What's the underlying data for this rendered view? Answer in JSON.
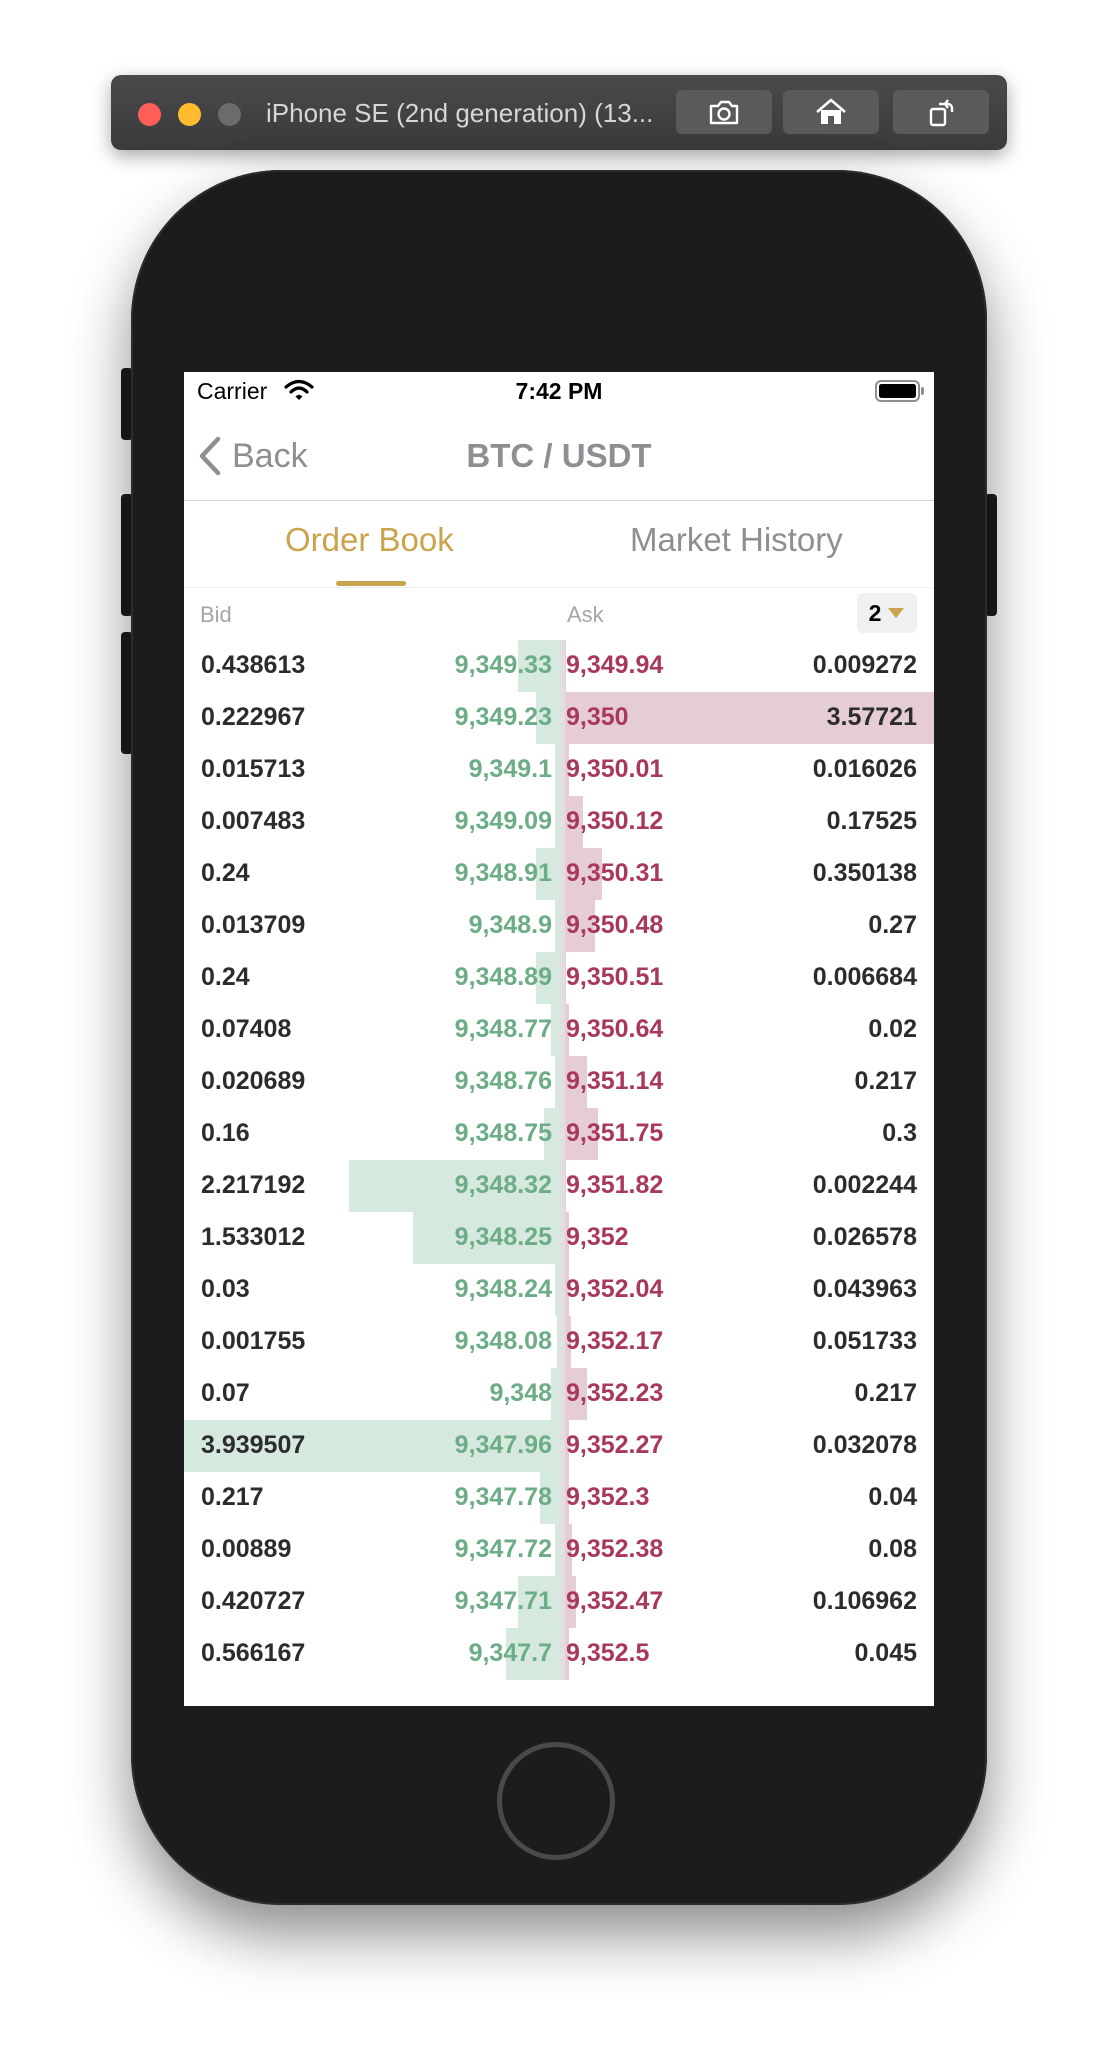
{
  "simulator": {
    "title": "iPhone SE (2nd generation) (13...",
    "screenshot_icon": "camera-icon",
    "home_icon": "home-icon",
    "rotate_icon": "rotate-icon"
  },
  "status_bar": {
    "carrier": "Carrier",
    "time": "7:42 PM"
  },
  "nav": {
    "back_label": "Back",
    "title": "BTC / USDT"
  },
  "tabs": [
    {
      "label": "Order Book",
      "active": true
    },
    {
      "label": "Market History",
      "active": false
    }
  ],
  "book_header": {
    "bid_label": "Bid",
    "ask_label": "Ask",
    "precision": "2"
  },
  "colors": {
    "accent": "#c9a44d",
    "bid_price": "#6cac86",
    "ask_price": "#a8385c",
    "bid_depth": "#d6e9df",
    "ask_depth": "#e6cdd5"
  },
  "order_book": [
    {
      "bid_amount": "0.438613",
      "bid_price": "9,349.33",
      "ask_price": "9,349.94",
      "ask_amount": "0.009272",
      "bid_depth": 0.11,
      "ask_depth": 0.003
    },
    {
      "bid_amount": "0.222967",
      "bid_price": "9,349.23",
      "ask_price": "9,350",
      "ask_amount": "3.57721",
      "bid_depth": 0.06,
      "ask_depth": 1.0
    },
    {
      "bid_amount": "0.015713",
      "bid_price": "9,349.1",
      "ask_price": "9,350.01",
      "ask_amount": "0.016026",
      "bid_depth": 0.01,
      "ask_depth": 0.01
    },
    {
      "bid_amount": "0.007483",
      "bid_price": "9,349.09",
      "ask_price": "9,350.12",
      "ask_amount": "0.17525",
      "bid_depth": 0.01,
      "ask_depth": 0.05
    },
    {
      "bid_amount": "0.24",
      "bid_price": "9,348.91",
      "ask_price": "9,350.31",
      "ask_amount": "0.350138",
      "bid_depth": 0.06,
      "ask_depth": 0.1
    },
    {
      "bid_amount": "0.013709",
      "bid_price": "9,348.9",
      "ask_price": "9,350.48",
      "ask_amount": "0.27",
      "bid_depth": 0.01,
      "ask_depth": 0.08
    },
    {
      "bid_amount": "0.24",
      "bid_price": "9,348.89",
      "ask_price": "9,350.51",
      "ask_amount": "0.006684",
      "bid_depth": 0.06,
      "ask_depth": 0.003
    },
    {
      "bid_amount": "0.07408",
      "bid_price": "9,348.77",
      "ask_price": "9,350.64",
      "ask_amount": "0.02",
      "bid_depth": 0.02,
      "ask_depth": 0.01
    },
    {
      "bid_amount": "0.020689",
      "bid_price": "9,348.76",
      "ask_price": "9,351.14",
      "ask_amount": "0.217",
      "bid_depth": 0.01,
      "ask_depth": 0.06
    },
    {
      "bid_amount": "0.16",
      "bid_price": "9,348.75",
      "ask_price": "9,351.75",
      "ask_amount": "0.3",
      "bid_depth": 0.04,
      "ask_depth": 0.09
    },
    {
      "bid_amount": "2.217192",
      "bid_price": "9,348.32",
      "ask_price": "9,351.82",
      "ask_amount": "0.002244",
      "bid_depth": 0.56,
      "ask_depth": 0.003
    },
    {
      "bid_amount": "1.533012",
      "bid_price": "9,348.25",
      "ask_price": "9,352",
      "ask_amount": "0.026578",
      "bid_depth": 0.39,
      "ask_depth": 0.01
    },
    {
      "bid_amount": "0.03",
      "bid_price": "9,348.24",
      "ask_price": "9,352.04",
      "ask_amount": "0.043963",
      "bid_depth": 0.01,
      "ask_depth": 0.01
    },
    {
      "bid_amount": "0.001755",
      "bid_price": "9,348.08",
      "ask_price": "9,352.17",
      "ask_amount": "0.051733",
      "bid_depth": 0.005,
      "ask_depth": 0.015
    },
    {
      "bid_amount": "0.07",
      "bid_price": "9,348",
      "ask_price": "9,352.23",
      "ask_amount": "0.217",
      "bid_depth": 0.02,
      "ask_depth": 0.06
    },
    {
      "bid_amount": "3.939507",
      "bid_price": "9,347.96",
      "ask_price": "9,352.27",
      "ask_amount": "0.032078",
      "bid_depth": 1.0,
      "ask_depth": 0.01
    },
    {
      "bid_amount": "0.217",
      "bid_price": "9,347.78",
      "ask_price": "9,352.3",
      "ask_amount": "0.04",
      "bid_depth": 0.05,
      "ask_depth": 0.01
    },
    {
      "bid_amount": "0.00889",
      "bid_price": "9,347.72",
      "ask_price": "9,352.38",
      "ask_amount": "0.08",
      "bid_depth": 0.01,
      "ask_depth": 0.02
    },
    {
      "bid_amount": "0.420727",
      "bid_price": "9,347.71",
      "ask_price": "9,352.47",
      "ask_amount": "0.106962",
      "bid_depth": 0.11,
      "ask_depth": 0.03
    },
    {
      "bid_amount": "0.566167",
      "bid_price": "9,347.7",
      "ask_price": "9,352.5",
      "ask_amount": "0.045",
      "bid_depth": 0.14,
      "ask_depth": 0.01
    }
  ]
}
